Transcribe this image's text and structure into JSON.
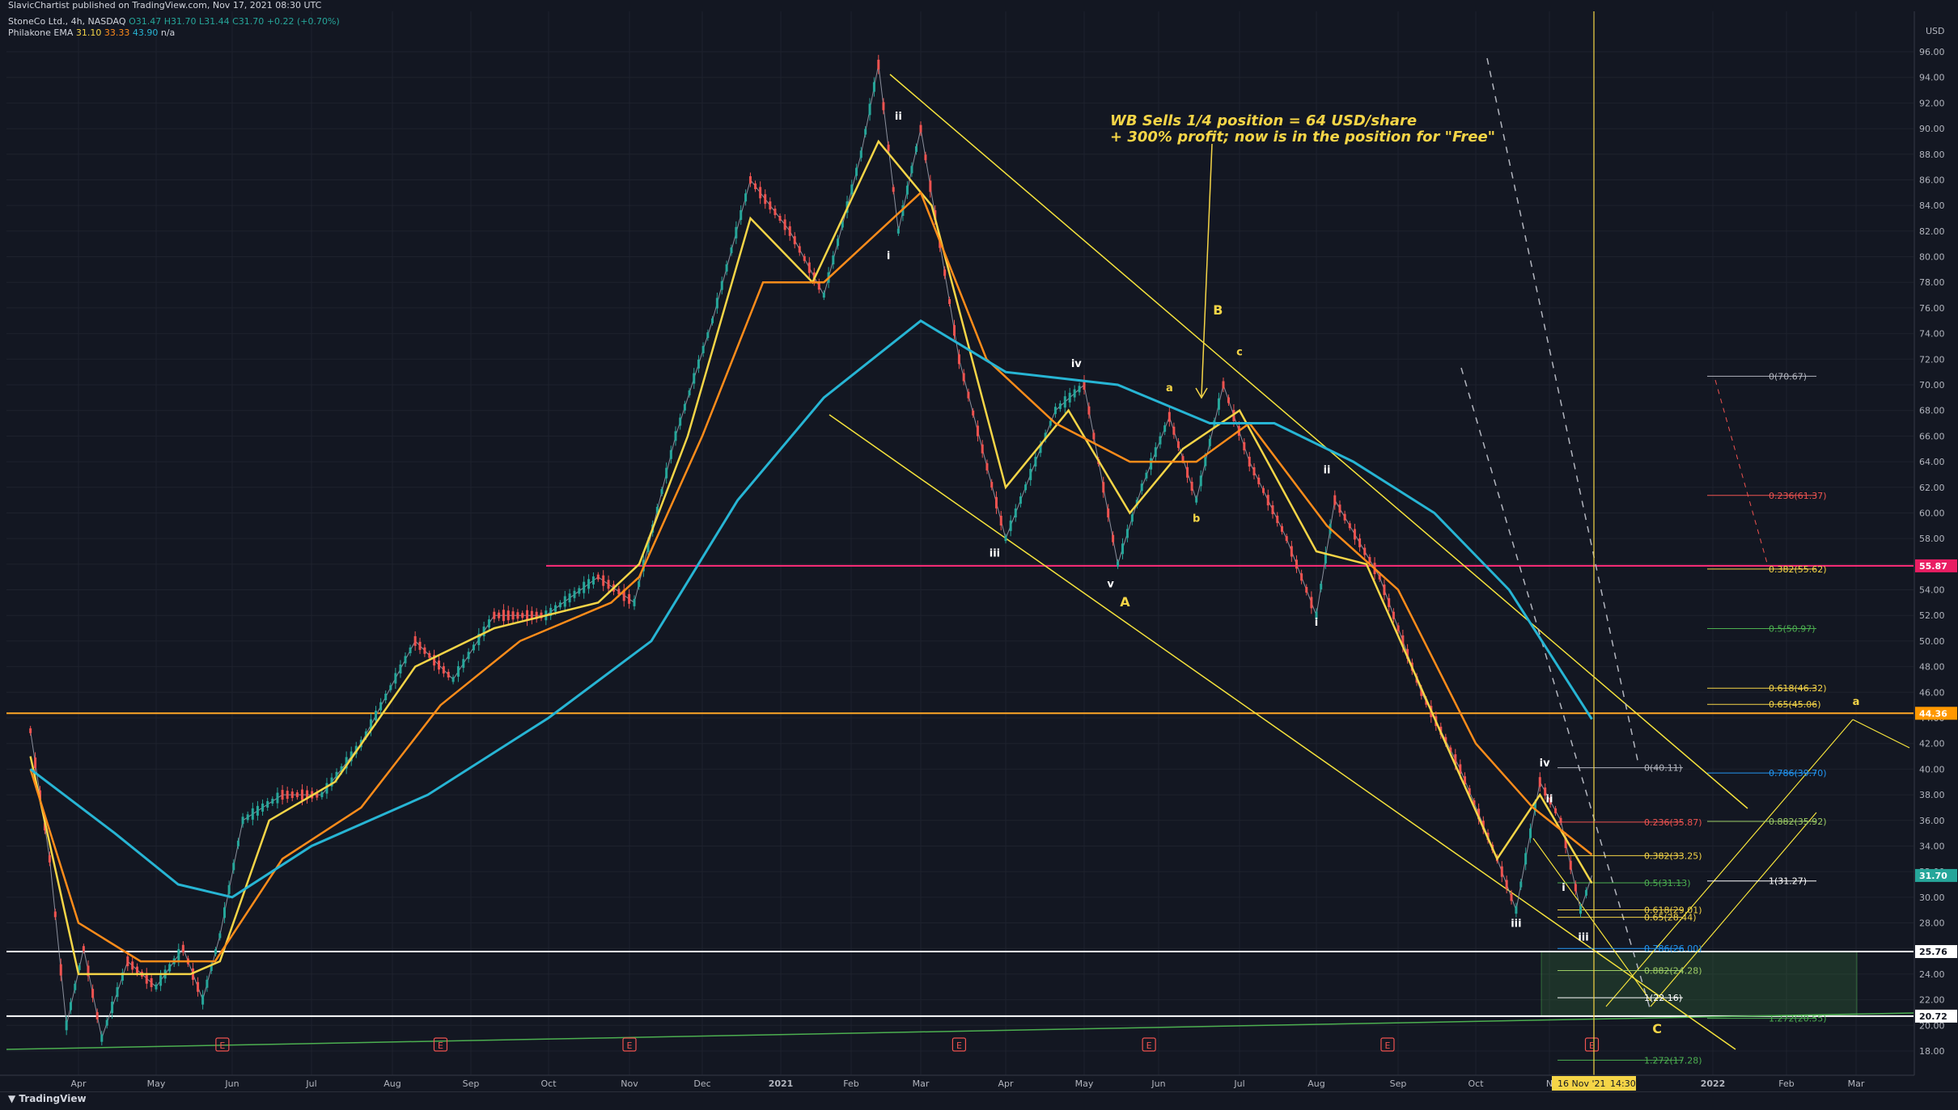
{
  "header": {
    "publish_line": "SlavicChartist published on TradingView.com, Nov 17, 2021 08:30 UTC",
    "symbol": "StoneCo Ltd., 4h, NASDAQ",
    "ohlc": {
      "o": "O31.47",
      "h": "H31.70",
      "l": "L31.44",
      "c": "C31.70",
      "chg": "+0.22 (+0.70%)"
    },
    "indicator_name": "Philakone EMA",
    "indicator_values": [
      "31.10",
      "33.33",
      "43.90",
      "n/a"
    ]
  },
  "footer": {
    "logo": "TradingView"
  },
  "colors": {
    "background": "#131722",
    "grid": "#1e222d",
    "ema_fast": "#f5d547",
    "ema_mid": "#ff8c1a",
    "ema_slow": "#27b5d4",
    "channel": "#f5e33c",
    "magenta_level": "#ff2d7a",
    "orange_level": "#ffa726",
    "white_level": "#ffffff",
    "green_trend": "#4caf50",
    "up_candle": "#26a69a",
    "down_candle": "#ef5350"
  },
  "chart_data": {
    "type": "line",
    "currency": "USD",
    "x_ticks": [
      "Apr",
      "May",
      "Jun",
      "Jul",
      "Aug",
      "Sep",
      "Oct",
      "Nov",
      "Dec",
      "2021",
      "Feb",
      "Mar",
      "Apr",
      "May",
      "Jun",
      "Jul",
      "Aug",
      "Sep",
      "Oct",
      "N",
      "16 Nov '21",
      "14:30",
      "2022",
      "Feb",
      "Mar"
    ],
    "ylim": [
      16.9,
      97.2
    ],
    "y_ticks": [
      96,
      94,
      92,
      90,
      88,
      86,
      84,
      82,
      80,
      78,
      76,
      74,
      72,
      70,
      68,
      66,
      64,
      62,
      60,
      58,
      56,
      54,
      52,
      50,
      48,
      46,
      44,
      42,
      40,
      38,
      36,
      34,
      32,
      30,
      28,
      26,
      24,
      22,
      20,
      18
    ],
    "y_tick_labels": [
      "96.00",
      "94.00",
      "92.00",
      "90.00",
      "88.00",
      "86.00",
      "84.00",
      "82.00",
      "80.00",
      "78.00",
      "76.00",
      "74.00",
      "72.00",
      "70.00",
      "68.00",
      "66.00",
      "64.00",
      "62.00",
      "60.00",
      "58.00",
      "56.00",
      "54.00",
      "52.00",
      "50.00",
      "48.00",
      "46.00",
      "44.00",
      "42.00",
      "40.00",
      "38.00",
      "36.00",
      "34.00",
      "32.00",
      "30.00",
      "28.00",
      "26.00",
      "24.00",
      "22.00",
      "20.00",
      "18.00"
    ],
    "price_path": [
      {
        "x": "2020-03-12",
        "y": 43
      },
      {
        "x": "2020-03-20",
        "y": 33
      },
      {
        "x": "2020-03-27",
        "y": 20
      },
      {
        "x": "2020-04-03",
        "y": 26
      },
      {
        "x": "2020-04-10",
        "y": 19
      },
      {
        "x": "2020-04-20",
        "y": 25
      },
      {
        "x": "2020-05-01",
        "y": 23
      },
      {
        "x": "2020-05-12",
        "y": 26
      },
      {
        "x": "2020-05-20",
        "y": 22
      },
      {
        "x": "2020-05-27",
        "y": 27
      },
      {
        "x": "2020-06-05",
        "y": 36
      },
      {
        "x": "2020-06-20",
        "y": 38
      },
      {
        "x": "2020-07-05",
        "y": 38
      },
      {
        "x": "2020-07-20",
        "y": 42
      },
      {
        "x": "2020-08-10",
        "y": 50
      },
      {
        "x": "2020-08-25",
        "y": 47
      },
      {
        "x": "2020-09-10",
        "y": 52
      },
      {
        "x": "2020-09-30",
        "y": 52
      },
      {
        "x": "2020-10-20",
        "y": 55
      },
      {
        "x": "2020-11-03",
        "y": 53
      },
      {
        "x": "2020-11-20",
        "y": 66
      },
      {
        "x": "2020-12-05",
        "y": 75
      },
      {
        "x": "2020-12-20",
        "y": 86
      },
      {
        "x": "2021-01-05",
        "y": 82
      },
      {
        "x": "2021-01-20",
        "y": 77
      },
      {
        "x": "2021-02-05",
        "y": 88
      },
      {
        "x": "2021-02-12",
        "y": 95
      },
      {
        "x": "2021-02-20",
        "y": 82
      },
      {
        "x": "2021-03-01",
        "y": 90
      },
      {
        "x": "2021-03-15",
        "y": 72
      },
      {
        "x": "2021-04-01",
        "y": 58
      },
      {
        "x": "2021-04-20",
        "y": 68
      },
      {
        "x": "2021-05-01",
        "y": 70
      },
      {
        "x": "2021-05-15",
        "y": 56
      },
      {
        "x": "2021-05-25",
        "y": 62
      },
      {
        "x": "2021-06-05",
        "y": 67.5
      },
      {
        "x": "2021-06-15",
        "y": 61
      },
      {
        "x": "2021-06-25",
        "y": 70
      },
      {
        "x": "2021-07-05",
        "y": 64
      },
      {
        "x": "2021-07-20",
        "y": 58
      },
      {
        "x": "2021-08-01",
        "y": 52
      },
      {
        "x": "2021-08-08",
        "y": 61
      },
      {
        "x": "2021-08-25",
        "y": 55
      },
      {
        "x": "2021-09-10",
        "y": 46
      },
      {
        "x": "2021-09-25",
        "y": 40
      },
      {
        "x": "2021-10-10",
        "y": 33
      },
      {
        "x": "2021-10-18",
        "y": 29
      },
      {
        "x": "2021-10-28",
        "y": 39
      },
      {
        "x": "2021-11-05",
        "y": 36
      },
      {
        "x": "2021-11-12",
        "y": 29
      },
      {
        "x": "2021-11-16",
        "y": 31.7
      }
    ],
    "series": [
      {
        "name": "EMA 1",
        "color": "#f5d547",
        "last": 31.1,
        "values": [
          {
            "x": "2020-03-12",
            "y": 41
          },
          {
            "x": "2020-04-01",
            "y": 24
          },
          {
            "x": "2020-04-20",
            "y": 24
          },
          {
            "x": "2020-05-15",
            "y": 24
          },
          {
            "x": "2020-05-27",
            "y": 25
          },
          {
            "x": "2020-06-15",
            "y": 36
          },
          {
            "x": "2020-07-10",
            "y": 39
          },
          {
            "x": "2020-08-10",
            "y": 48
          },
          {
            "x": "2020-09-10",
            "y": 51
          },
          {
            "x": "2020-10-20",
            "y": 53
          },
          {
            "x": "2020-11-05",
            "y": 56
          },
          {
            "x": "2020-11-25",
            "y": 66
          },
          {
            "x": "2020-12-20",
            "y": 83
          },
          {
            "x": "2021-01-15",
            "y": 78
          },
          {
            "x": "2021-02-12",
            "y": 89
          },
          {
            "x": "2021-03-05",
            "y": 84
          },
          {
            "x": "2021-04-01",
            "y": 62
          },
          {
            "x": "2021-04-25",
            "y": 68
          },
          {
            "x": "2021-05-20",
            "y": 60
          },
          {
            "x": "2021-06-10",
            "y": 65
          },
          {
            "x": "2021-07-01",
            "y": 68
          },
          {
            "x": "2021-08-01",
            "y": 57
          },
          {
            "x": "2021-08-20",
            "y": 56
          },
          {
            "x": "2021-09-15",
            "y": 44
          },
          {
            "x": "2021-10-10",
            "y": 33
          },
          {
            "x": "2021-10-28",
            "y": 38
          },
          {
            "x": "2021-11-16",
            "y": 31.1
          }
        ]
      },
      {
        "name": "EMA 2",
        "color": "#ff8c1a",
        "last": 33.33,
        "values": [
          {
            "x": "2020-03-12",
            "y": 40
          },
          {
            "x": "2020-04-01",
            "y": 28
          },
          {
            "x": "2020-04-25",
            "y": 25
          },
          {
            "x": "2020-05-25",
            "y": 25
          },
          {
            "x": "2020-06-20",
            "y": 33
          },
          {
            "x": "2020-07-20",
            "y": 37
          },
          {
            "x": "2020-08-20",
            "y": 45
          },
          {
            "x": "2020-09-20",
            "y": 50
          },
          {
            "x": "2020-10-25",
            "y": 53
          },
          {
            "x": "2020-11-05",
            "y": 55
          },
          {
            "x": "2020-12-01",
            "y": 66
          },
          {
            "x": "2020-12-25",
            "y": 78
          },
          {
            "x": "2021-01-20",
            "y": 78
          },
          {
            "x": "2021-03-01",
            "y": 85
          },
          {
            "x": "2021-03-25",
            "y": 72
          },
          {
            "x": "2021-04-20",
            "y": 67
          },
          {
            "x": "2021-05-20",
            "y": 64
          },
          {
            "x": "2021-06-15",
            "y": 64
          },
          {
            "x": "2021-07-05",
            "y": 67
          },
          {
            "x": "2021-08-05",
            "y": 59
          },
          {
            "x": "2021-09-01",
            "y": 54
          },
          {
            "x": "2021-10-01",
            "y": 42
          },
          {
            "x": "2021-10-25",
            "y": 37
          },
          {
            "x": "2021-11-16",
            "y": 33.33
          }
        ]
      },
      {
        "name": "EMA 3",
        "color": "#27b5d4",
        "last": 43.9,
        "values": [
          {
            "x": "2020-03-12",
            "y": 40
          },
          {
            "x": "2020-04-15",
            "y": 35
          },
          {
            "x": "2020-05-10",
            "y": 31
          },
          {
            "x": "2020-06-01",
            "y": 30
          },
          {
            "x": "2020-07-01",
            "y": 34
          },
          {
            "x": "2020-08-15",
            "y": 38
          },
          {
            "x": "2020-10-01",
            "y": 44
          },
          {
            "x": "2020-11-10",
            "y": 50
          },
          {
            "x": "2020-12-15",
            "y": 61
          },
          {
            "x": "2021-01-20",
            "y": 69
          },
          {
            "x": "2021-03-01",
            "y": 75
          },
          {
            "x": "2021-04-01",
            "y": 71
          },
          {
            "x": "2021-05-15",
            "y": 70
          },
          {
            "x": "2021-06-20",
            "y": 67
          },
          {
            "x": "2021-07-15",
            "y": 67
          },
          {
            "x": "2021-08-15",
            "y": 64
          },
          {
            "x": "2021-09-15",
            "y": 60
          },
          {
            "x": "2021-10-15",
            "y": 54
          },
          {
            "x": "2021-11-16",
            "y": 43.9
          }
        ]
      }
    ],
    "horizontal_levels": [
      {
        "label": "55.87",
        "y": 55.87,
        "color": "#ff2d7a"
      },
      {
        "label": "44.36",
        "y": 44.36,
        "color": "#ffa726"
      },
      {
        "label": "25.76",
        "y": 25.76,
        "color": "#ffffff"
      },
      {
        "label": "20.72",
        "y": 20.72,
        "color": "#ffffff"
      }
    ],
    "price_marker": {
      "label": "31.70",
      "y": 31.7
    },
    "fib_sets": [
      [
        {
          "label": "0(70.67)",
          "y": 70.67
        },
        {
          "label": "0.236(61.37)",
          "y": 61.37
        },
        {
          "label": "0.382(55.62)",
          "y": 55.62
        },
        {
          "label": "0.5(50.97)",
          "y": 50.97
        },
        {
          "label": "0.618(46.32)",
          "y": 46.32
        },
        {
          "label": "0.65(45.06)",
          "y": 45.06
        },
        {
          "label": "0.786(39.70)",
          "y": 39.7
        },
        {
          "label": "0.882(35.92)",
          "y": 35.92
        },
        {
          "label": "1(31.27)",
          "y": 31.27
        },
        {
          "label": "1.272(20.55)",
          "y": 20.55
        }
      ],
      [
        {
          "label": "0(40.11)",
          "y": 40.11
        },
        {
          "label": "0.236(35.87)",
          "y": 35.87
        },
        {
          "label": "0.382(33.25)",
          "y": 33.25
        },
        {
          "label": "0.5(31.13)",
          "y": 31.13
        },
        {
          "label": "0.618(29.01)",
          "y": 29.01
        },
        {
          "label": "0.65(28.44)",
          "y": 28.44
        },
        {
          "label": "0.786(26.00)",
          "y": 26.0
        },
        {
          "label": "0.882(24.28)",
          "y": 24.28
        },
        {
          "label": "1(22.16)",
          "y": 22.16
        },
        {
          "label": "1.272(17.28)",
          "y": 17.28
        }
      ]
    ],
    "wave_labels": [
      {
        "text": "ii",
        "x": "2021-02-20",
        "y": 90.7
      },
      {
        "text": "i",
        "x": "2021-02-16",
        "y": 79.8
      },
      {
        "text": "iv",
        "x": "2021-04-28",
        "y": 71.4
      },
      {
        "text": "iii",
        "x": "2021-03-28",
        "y": 56.6
      },
      {
        "text": "v",
        "x": "2021-05-12",
        "y": 54.2
      },
      {
        "text": "A",
        "x": "2021-05-18",
        "y": 52.7
      },
      {
        "text": "a",
        "x": "2021-06-05",
        "y": 69.5
      },
      {
        "text": "b",
        "x": "2021-06-15",
        "y": 59.3
      },
      {
        "text": "c",
        "x": "2021-07-01",
        "y": 72.3
      },
      {
        "text": "B",
        "x": "2021-06-23",
        "y": 75.5
      },
      {
        "text": "ii",
        "x": "2021-08-05",
        "y": 63.1
      },
      {
        "text": "i",
        "x": "2021-08-01",
        "y": 51.2
      },
      {
        "text": "iv",
        "x": "2021-10-30",
        "y": 40.2
      },
      {
        "text": "iii",
        "x": "2021-10-18",
        "y": 27.7
      },
      {
        "text": "ii",
        "x": "2021-11-01",
        "y": 37.4
      },
      {
        "text": "i",
        "x": "2021-11-06",
        "y": 30.5
      },
      {
        "text": "iii",
        "x": "2021-11-13",
        "y": 26.6
      },
      {
        "text": "C",
        "x": "2021-12-10",
        "y": 19.4
      },
      {
        "text": "a",
        "x": "2022-03-01",
        "y": 45
      }
    ],
    "annotation": [
      "WB Sells 1/4 position = 64 USD/share",
      "+ 300% profit; now is in the position for \"Free\""
    ],
    "earnings_markers": [
      {
        "x": "2020-05-28",
        "type": "E"
      },
      {
        "x": "2020-08-20",
        "type": "E"
      },
      {
        "x": "2020-11-01",
        "type": "E"
      },
      {
        "x": "2021-03-15",
        "type": "E"
      },
      {
        "x": "2021-05-28",
        "type": "E"
      },
      {
        "x": "2021-08-28",
        "type": "E"
      },
      {
        "x": "2021-11-16",
        "type": "E"
      }
    ]
  }
}
